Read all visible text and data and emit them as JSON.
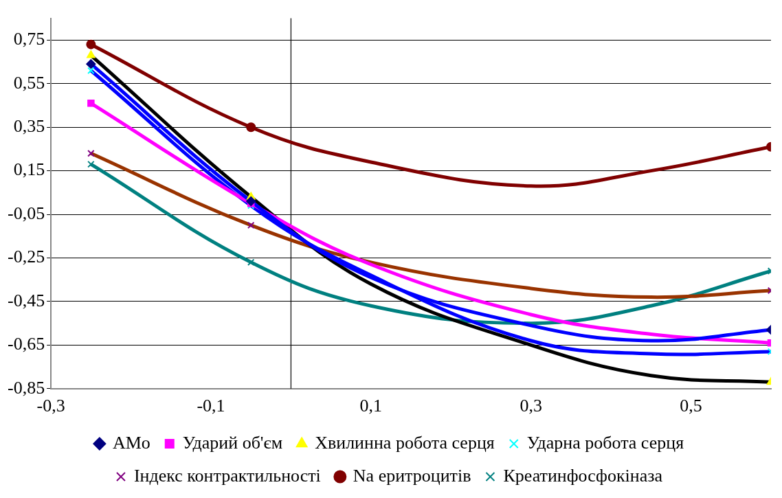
{
  "chart_data": {
    "type": "scatter",
    "xlim": [
      -0.3,
      0.6
    ],
    "xticks": [
      {
        "value": -0.3,
        "label": "-0,3"
      },
      {
        "value": -0.1,
        "label": "-0,1"
      },
      {
        "value": 0.1,
        "label": "0,1"
      },
      {
        "value": 0.3,
        "label": "0,3"
      },
      {
        "value": 0.5,
        "label": "0,5"
      }
    ],
    "ylim": [
      -0.85,
      0.85
    ],
    "yticks": [
      {
        "value": -0.85,
        "label": "-0,85"
      },
      {
        "value": -0.65,
        "label": "-0,65"
      },
      {
        "value": -0.45,
        "label": "-0,45"
      },
      {
        "value": -0.25,
        "label": "-0,25"
      },
      {
        "value": -0.05,
        "label": "-0,05"
      },
      {
        "value": 0.15,
        "label": "0,15"
      },
      {
        "value": 0.35,
        "label": "0,35"
      },
      {
        "value": 0.55,
        "label": "0,55"
      },
      {
        "value": 0.75,
        "label": "0,75"
      }
    ],
    "grid": "y",
    "legend": "bottom",
    "ref_lines": [
      {
        "axis": "x",
        "value": 0,
        "color": "#000000"
      }
    ],
    "series": [
      {
        "type": "line",
        "color": "#0000ff",
        "x": [
          -0.25,
          -0.05,
          0.1,
          0.3,
          0.45,
          0.6
        ],
        "values": [
          0.64,
          0.01,
          -0.34,
          -0.56,
          -0.63,
          -0.58
        ]
      },
      {
        "type": "line",
        "color": "#ff00ff",
        "x": [
          -0.25,
          -0.05,
          0.1,
          0.3,
          0.45,
          0.6
        ],
        "values": [
          0.46,
          0.0,
          -0.28,
          -0.51,
          -0.6,
          -0.64
        ]
      },
      {
        "type": "line",
        "color": "#000000",
        "x": [
          -0.25,
          -0.05,
          0.1,
          0.3,
          0.45,
          0.6
        ],
        "values": [
          0.68,
          0.03,
          -0.37,
          -0.65,
          -0.79,
          -0.82
        ]
      },
      {
        "type": "line",
        "color": "#0000ff",
        "x": [
          -0.25,
          -0.05,
          0.1,
          0.3,
          0.45,
          0.6
        ],
        "values": [
          0.61,
          -0.01,
          -0.33,
          -0.63,
          -0.69,
          -0.68
        ]
      },
      {
        "type": "line",
        "color": "#993300",
        "x": [
          -0.25,
          -0.05,
          0.1,
          0.3,
          0.45,
          0.6
        ],
        "values": [
          0.23,
          -0.1,
          -0.27,
          -0.39,
          -0.43,
          -0.4
        ]
      },
      {
        "type": "line",
        "color": "#800000",
        "x": [
          -0.25,
          -0.05,
          0.1,
          0.3,
          0.45,
          0.6
        ],
        "values": [
          0.73,
          0.35,
          0.19,
          0.08,
          0.15,
          0.26
        ]
      },
      {
        "type": "line",
        "color": "#008080",
        "x": [
          -0.25,
          -0.05,
          0.1,
          0.3,
          0.45,
          0.6
        ],
        "values": [
          0.18,
          -0.27,
          -0.47,
          -0.55,
          -0.47,
          -0.31
        ]
      },
      {
        "name": "AMo",
        "color": "#000080",
        "marker": "diamond",
        "x": [
          -0.25,
          -0.05,
          0.6
        ],
        "values": [
          0.64,
          0.01,
          -0.58
        ]
      },
      {
        "name": "Ударий об'єм",
        "color": "#ff00ff",
        "marker": "square",
        "x": [
          -0.25,
          -0.05,
          0.6
        ],
        "values": [
          0.46,
          0.0,
          -0.64
        ]
      },
      {
        "name": "Хвилинна робота серця",
        "color": "#ffff00",
        "marker": "triangle",
        "x": [
          -0.25,
          -0.05,
          0.6
        ],
        "values": [
          0.68,
          0.03,
          -0.82
        ]
      },
      {
        "name": "Ударна робота серця",
        "color": "#00ffff",
        "marker": "cross",
        "x": [
          -0.25,
          -0.05,
          0.6
        ],
        "values": [
          0.61,
          -0.01,
          -0.68
        ]
      },
      {
        "name": "Індекс контрактильності",
        "color": "#800080",
        "marker": "cross",
        "x": [
          -0.25,
          -0.05,
          0.6
        ],
        "values": [
          0.23,
          -0.1,
          -0.4
        ]
      },
      {
        "name": "Na еритроцитів",
        "color": "#800000",
        "marker": "circle",
        "x": [
          -0.25,
          -0.05,
          0.6
        ],
        "values": [
          0.73,
          0.35,
          0.26
        ]
      },
      {
        "name": "Креатинфосфокіназа",
        "color": "#008080",
        "marker": "cross",
        "x": [
          -0.25,
          -0.05,
          0.6
        ],
        "values": [
          0.18,
          -0.27,
          -0.31
        ]
      }
    ]
  }
}
